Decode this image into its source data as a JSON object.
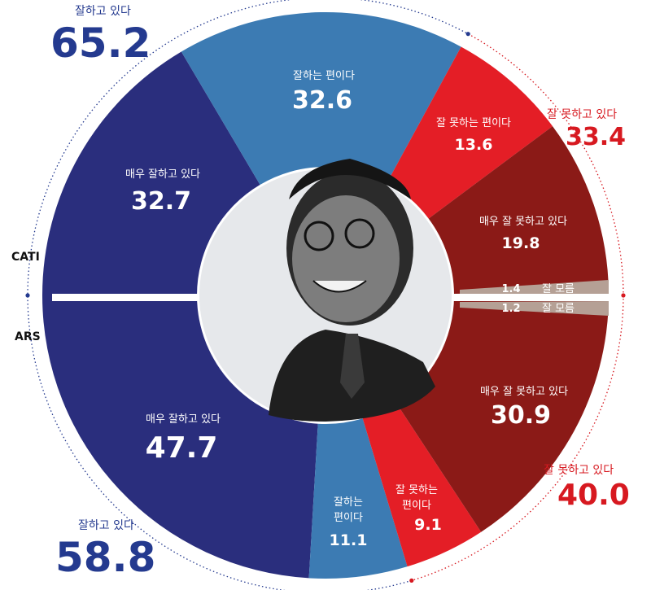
{
  "colors": {
    "very_good": "#2a2e7d",
    "good": "#3c7bb3",
    "bad": "#e41e26",
    "very_bad": "#8b1a17",
    "unknown": "#b5a095",
    "blue_text": "#243a8f",
    "red_text": "#d71920"
  },
  "chart_data": [
    {
      "type": "pie",
      "name": "CATI",
      "slices": [
        {
          "label": "매우 잘하고 있다",
          "value": 32.7,
          "category": "very_good"
        },
        {
          "label": "잘하는 편이다",
          "value": 32.6,
          "category": "good"
        },
        {
          "label": "잘 못하는 편이다",
          "value": 13.6,
          "category": "bad"
        },
        {
          "label": "매우 잘 못하고 있다",
          "value": 19.8,
          "category": "very_bad"
        },
        {
          "label": "잘 모름",
          "value": 1.4,
          "category": "unknown"
        }
      ],
      "totals": {
        "positive": {
          "label": "잘하고 있다",
          "value": "65.2"
        },
        "negative": {
          "label": "잘 못하고 있다",
          "value": "33.4"
        }
      }
    },
    {
      "type": "pie",
      "name": "ARS",
      "slices": [
        {
          "label": "매우 잘하고 있다",
          "value": 47.7,
          "category": "very_good"
        },
        {
          "label": "잘하는 편이다",
          "value": 11.1,
          "category": "good"
        },
        {
          "label": "잘 못하는 편이다",
          "value": 9.1,
          "category": "bad"
        },
        {
          "label": "매우 잘 못하고 있다",
          "value": 30.9,
          "category": "very_bad"
        },
        {
          "label": "잘 모름",
          "value": 1.2,
          "category": "unknown"
        }
      ],
      "totals": {
        "positive": {
          "label": "잘하고 있다",
          "value": "58.8"
        },
        "negative": {
          "label": "잘 못하고 있다",
          "value": "40.0"
        }
      }
    }
  ],
  "method_labels": {
    "top": "CATI",
    "bottom": "ARS"
  },
  "slice_text": {
    "cati_very_good_1": "매우 잘하고 있다",
    "cati_good_1": "잘하는 편이다",
    "cati_bad_1": "잘 못하는 편이다",
    "cati_very_bad_1": "매우 잘 못하고 있다",
    "ars_very_good_1": "매우 잘하고 있다",
    "ars_good_1": "잘하는",
    "ars_good_2": "편이다",
    "ars_bad_1": "잘 못하는",
    "ars_bad_2": "편이다",
    "ars_very_bad_1": "매우 잘 못하고 있다"
  }
}
